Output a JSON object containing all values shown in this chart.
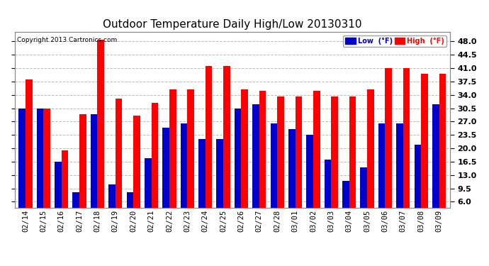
{
  "dates": [
    "02/14",
    "02/15",
    "02/16",
    "02/17",
    "02/18",
    "02/19",
    "02/20",
    "02/21",
    "02/22",
    "02/23",
    "02/24",
    "02/25",
    "02/26",
    "02/27",
    "02/28",
    "03/01",
    "03/02",
    "03/03",
    "03/04",
    "03/05",
    "03/06",
    "03/07",
    "03/08",
    "03/09"
  ],
  "high": [
    38.0,
    30.5,
    19.5,
    29.0,
    48.5,
    33.0,
    28.5,
    32.0,
    35.5,
    35.5,
    41.5,
    41.5,
    35.5,
    35.0,
    33.5,
    33.5,
    35.0,
    33.5,
    33.5,
    35.5,
    41.0,
    41.0,
    39.5,
    39.5
  ],
  "low": [
    30.5,
    30.5,
    16.5,
    8.5,
    29.0,
    10.5,
    8.5,
    17.5,
    25.5,
    26.5,
    22.5,
    22.5,
    30.5,
    31.5,
    26.5,
    25.0,
    23.5,
    17.0,
    11.5,
    15.0,
    26.5,
    26.5,
    21.0,
    31.5
  ],
  "high_color": "#ff0000",
  "low_color": "#0000cc",
  "title": "Outdoor Temperature Daily High/Low 20130310",
  "yticks": [
    6.0,
    9.5,
    13.0,
    16.5,
    20.0,
    23.5,
    27.0,
    30.5,
    34.0,
    37.5,
    41.0,
    44.5,
    48.0
  ],
  "ylim": [
    4.5,
    50.5
  ],
  "background_color": "#ffffff",
  "grid_color": "#bbbbbb",
  "copyright": "Copyright 2013 Cartronics.com",
  "legend_low_label": "Low  (°F)",
  "legend_high_label": "High  (°F)"
}
